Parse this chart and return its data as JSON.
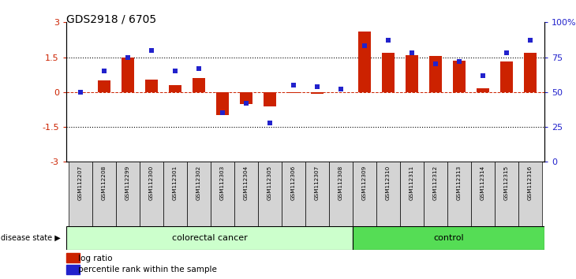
{
  "title": "GDS2918 / 6705",
  "samples": [
    "GSM112207",
    "GSM112208",
    "GSM112299",
    "GSM112300",
    "GSM112301",
    "GSM112302",
    "GSM112303",
    "GSM112304",
    "GSM112305",
    "GSM112306",
    "GSM112307",
    "GSM112308",
    "GSM112309",
    "GSM112310",
    "GSM112311",
    "GSM112312",
    "GSM112313",
    "GSM112314",
    "GSM112315",
    "GSM112316"
  ],
  "log_ratio": [
    0.0,
    0.5,
    1.5,
    0.55,
    0.3,
    0.6,
    -1.0,
    -0.5,
    -0.6,
    -0.05,
    -0.08,
    0.0,
    2.6,
    1.7,
    1.6,
    1.55,
    1.35,
    0.18,
    1.3,
    1.7
  ],
  "percentile": [
    50,
    65,
    75,
    80,
    65,
    67,
    35,
    42,
    28,
    55,
    54,
    52,
    83,
    87,
    78,
    70,
    72,
    62,
    78,
    87
  ],
  "colorectal_cancer_count": 12,
  "control_count": 8,
  "bar_color": "#cc2200",
  "dot_color": "#2222cc",
  "colorectal_bg": "#ccffcc",
  "control_bg": "#55dd55",
  "sample_box_bg": "#d4d4d4",
  "ylim": [
    -3,
    3
  ],
  "yticks_left": [
    -3,
    -1.5,
    0,
    1.5,
    3
  ],
  "yticks_right_vals": [
    0,
    25,
    50,
    75,
    100
  ],
  "yticks_right_labels": [
    "0",
    "25",
    "50",
    "75",
    "100%"
  ],
  "hline_dotted": [
    -1.5,
    1.5
  ],
  "title_fontsize": 10,
  "legend_log_ratio": "log ratio",
  "legend_percentile": "percentile rank within the sample",
  "disease_state_label": "disease state",
  "colorectal_label": "colorectal cancer",
  "control_label": "control"
}
